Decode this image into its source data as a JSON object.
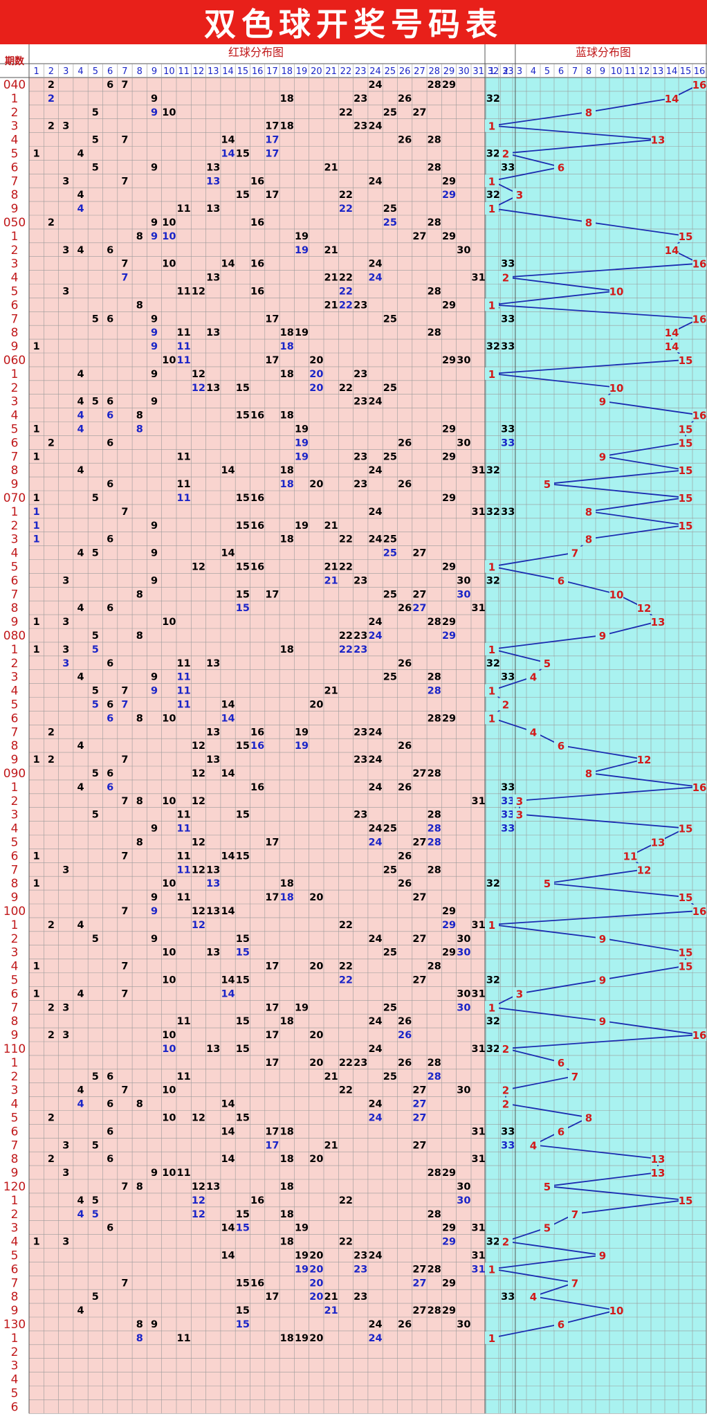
{
  "title": "双色球开奖号码表",
  "header": {
    "period_label": "期数",
    "red_label": "红球分布图",
    "blue_label": "蓝球分布图"
  },
  "colors": {
    "title_bg": "#e8201a",
    "red_bg": "#f9d4cf",
    "blue_bg": "#a9f2f0",
    "red_num": "#000000",
    "red_repeat": "#1a25c7",
    "blue_num": "#d21a1a",
    "line": "#1a2bb0",
    "grid": "#9a9a9a"
  },
  "chart_data": {
    "type": "table",
    "red_columns": [
      1,
      2,
      3,
      4,
      5,
      6,
      7,
      8,
      9,
      10,
      11,
      12,
      13,
      14,
      15,
      16,
      17,
      18,
      19,
      20,
      21,
      22,
      23,
      24,
      25,
      26,
      27,
      28,
      29,
      30,
      31,
      32,
      33
    ],
    "blue_columns": [
      1,
      2,
      3,
      4,
      5,
      6,
      7,
      8,
      9,
      10,
      11,
      12,
      13,
      14,
      15,
      16
    ],
    "period_labels": [
      "040",
      "1",
      "2",
      "3",
      "4",
      "5",
      "6",
      "7",
      "8",
      "9",
      "050",
      "1",
      "2",
      "3",
      "4",
      "5",
      "6",
      "7",
      "8",
      "9",
      "060",
      "1",
      "2",
      "3",
      "4",
      "5",
      "6",
      "7",
      "8",
      "9",
      "070",
      "1",
      "2",
      "3",
      "4",
      "5",
      "6",
      "7",
      "8",
      "9",
      "080",
      "1",
      "2",
      "3",
      "4",
      "5",
      "6",
      "7",
      "8",
      "9",
      "090",
      "1",
      "2",
      "3",
      "4",
      "5",
      "6",
      "7",
      "8",
      "9",
      "100",
      "1",
      "2",
      "3",
      "4",
      "5",
      "6",
      "7",
      "8",
      "9",
      "110",
      "1",
      "2",
      "3",
      "4",
      "5",
      "6",
      "7",
      "8",
      "9",
      "120",
      "1",
      "2",
      "3",
      "4",
      "5",
      "6",
      "7",
      "8",
      "9",
      "130",
      "1",
      "2",
      "3",
      "4",
      "5",
      "6"
    ],
    "red_draws": [
      [
        2,
        6,
        7,
        24,
        28,
        29
      ],
      [
        2,
        9,
        18,
        23,
        26,
        32
      ],
      [
        5,
        9,
        10,
        22,
        25,
        27
      ],
      [
        2,
        3,
        17,
        18,
        23,
        24
      ],
      [
        5,
        7,
        14,
        17,
        26,
        28
      ],
      [
        1,
        4,
        14,
        15,
        17,
        32
      ],
      [
        5,
        9,
        13,
        21,
        28,
        33
      ],
      [
        3,
        7,
        13,
        16,
        24,
        29
      ],
      [
        4,
        15,
        17,
        22,
        29,
        32
      ],
      [
        4,
        11,
        13,
        22,
        25,
        32
      ],
      [
        2,
        9,
        10,
        16,
        25,
        28
      ],
      [
        8,
        9,
        10,
        19,
        27,
        29
      ],
      [
        3,
        4,
        6,
        19,
        21,
        30
      ],
      [
        7,
        10,
        14,
        16,
        24,
        33
      ],
      [
        7,
        13,
        21,
        22,
        24,
        31
      ],
      [
        3,
        11,
        12,
        16,
        22,
        28
      ],
      [
        8,
        21,
        22,
        23,
        29,
        32
      ],
      [
        5,
        6,
        9,
        17,
        25,
        33
      ],
      [
        9,
        11,
        13,
        18,
        19,
        28
      ],
      [
        1,
        9,
        11,
        18,
        32,
        33
      ],
      [
        10,
        11,
        17,
        20,
        29,
        30
      ],
      [
        4,
        9,
        12,
        18,
        20,
        23
      ],
      [
        12,
        13,
        15,
        20,
        22,
        25
      ],
      [
        4,
        5,
        6,
        9,
        23,
        24
      ],
      [
        4,
        6,
        8,
        15,
        16,
        18
      ],
      [
        1,
        4,
        8,
        19,
        29,
        33
      ],
      [
        2,
        6,
        19,
        26,
        30,
        33
      ],
      [
        1,
        11,
        19,
        23,
        25,
        29
      ],
      [
        4,
        14,
        18,
        24,
        31,
        32
      ],
      [
        6,
        11,
        18,
        20,
        23,
        26
      ],
      [
        1,
        5,
        11,
        15,
        16,
        29
      ],
      [
        1,
        7,
        24,
        31,
        32,
        33
      ],
      [
        1,
        9,
        15,
        16,
        19,
        21
      ],
      [
        1,
        6,
        18,
        22,
        24,
        25
      ],
      [
        4,
        5,
        9,
        14,
        25,
        27
      ],
      [
        12,
        15,
        16,
        21,
        22,
        29
      ],
      [
        3,
        9,
        21,
        23,
        30,
        32
      ],
      [
        8,
        15,
        17,
        25,
        27,
        30
      ],
      [
        4,
        6,
        15,
        26,
        27,
        31
      ],
      [
        1,
        3,
        10,
        24,
        28,
        29
      ],
      [
        5,
        8,
        22,
        23,
        24,
        29
      ],
      [
        1,
        3,
        5,
        18,
        22,
        23
      ],
      [
        3,
        6,
        11,
        13,
        26,
        32
      ],
      [
        4,
        9,
        11,
        25,
        28,
        33
      ],
      [
        5,
        7,
        9,
        11,
        21,
        28
      ],
      [
        5,
        6,
        7,
        11,
        14,
        20
      ],
      [
        6,
        8,
        10,
        14,
        28,
        29
      ],
      [
        2,
        13,
        16,
        19,
        23,
        24
      ],
      [
        4,
        12,
        15,
        16,
        19,
        26
      ],
      [
        1,
        2,
        7,
        13,
        23,
        24
      ],
      [
        5,
        6,
        12,
        14,
        27,
        28
      ],
      [
        4,
        6,
        16,
        24,
        26,
        33
      ],
      [
        7,
        8,
        10,
        12,
        31,
        33
      ],
      [
        5,
        11,
        15,
        23,
        28,
        33
      ],
      [
        9,
        11,
        24,
        25,
        28,
        33
      ],
      [
        8,
        12,
        17,
        24,
        27,
        28
      ],
      [
        1,
        7,
        11,
        14,
        15,
        26
      ],
      [
        3,
        11,
        12,
        13,
        25,
        28
      ],
      [
        1,
        10,
        13,
        18,
        26,
        32
      ],
      [
        9,
        11,
        17,
        18,
        20,
        27
      ],
      [
        7,
        9,
        12,
        13,
        14,
        29
      ],
      [
        2,
        4,
        12,
        22,
        29,
        31
      ],
      [
        5,
        9,
        15,
        24,
        27,
        30
      ],
      [
        10,
        13,
        15,
        25,
        29,
        30
      ],
      [
        1,
        7,
        17,
        20,
        22,
        28
      ],
      [
        10,
        14,
        15,
        22,
        27,
        32
      ],
      [
        1,
        4,
        7,
        14,
        30,
        31
      ],
      [
        2,
        3,
        17,
        19,
        25,
        30
      ],
      [
        11,
        15,
        18,
        24,
        26,
        32
      ],
      [
        2,
        3,
        10,
        17,
        20,
        26
      ],
      [
        10,
        13,
        15,
        24,
        31,
        32
      ],
      [
        17,
        20,
        22,
        23,
        26,
        28
      ],
      [
        5,
        6,
        11,
        21,
        25,
        28
      ],
      [
        4,
        7,
        10,
        22,
        27,
        30
      ],
      [
        4,
        6,
        8,
        14,
        24,
        27
      ],
      [
        2,
        10,
        12,
        15,
        24,
        27
      ],
      [
        6,
        14,
        17,
        18,
        31,
        33
      ],
      [
        3,
        5,
        17,
        21,
        27,
        33
      ],
      [
        2,
        6,
        14,
        18,
        20,
        31
      ],
      [
        3,
        9,
        10,
        11,
        28,
        29
      ],
      [
        7,
        8,
        12,
        13,
        18,
        30
      ],
      [
        4,
        5,
        12,
        16,
        22,
        30
      ],
      [
        4,
        5,
        12,
        15,
        18,
        28
      ],
      [
        6,
        14,
        15,
        19,
        29,
        31
      ],
      [
        1,
        3,
        18,
        22,
        29,
        32
      ],
      [
        14,
        19,
        20,
        23,
        24,
        31
      ],
      [
        19,
        20,
        23,
        27,
        28,
        31
      ],
      [
        7,
        15,
        16,
        20,
        27,
        29
      ],
      [
        5,
        17,
        20,
        21,
        23,
        33
      ],
      [
        4,
        15,
        21,
        27,
        28,
        29
      ],
      [
        8,
        9,
        15,
        24,
        26,
        30
      ],
      [
        8,
        11,
        18,
        19,
        20,
        24
      ],
      [],
      [],
      [],
      [],
      []
    ],
    "blue_draws": [
      16,
      14,
      8,
      1,
      13,
      2,
      6,
      1,
      3,
      1,
      8,
      15,
      14,
      16,
      2,
      10,
      1,
      16,
      14,
      14,
      15,
      1,
      10,
      9,
      16,
      15,
      15,
      9,
      15,
      5,
      15,
      8,
      15,
      8,
      7,
      1,
      6,
      10,
      12,
      13,
      9,
      1,
      5,
      4,
      1,
      2,
      1,
      4,
      6,
      12,
      8,
      16,
      3,
      3,
      15,
      13,
      11,
      12,
      5,
      15,
      16,
      1,
      9,
      15,
      15,
      9,
      3,
      1,
      9,
      16,
      2,
      6,
      7,
      2,
      2,
      8,
      6,
      4,
      13,
      13,
      5,
      15,
      7,
      5,
      2,
      9,
      1,
      7,
      4,
      10,
      6,
      1,
      null,
      null,
      null,
      null,
      null
    ]
  }
}
